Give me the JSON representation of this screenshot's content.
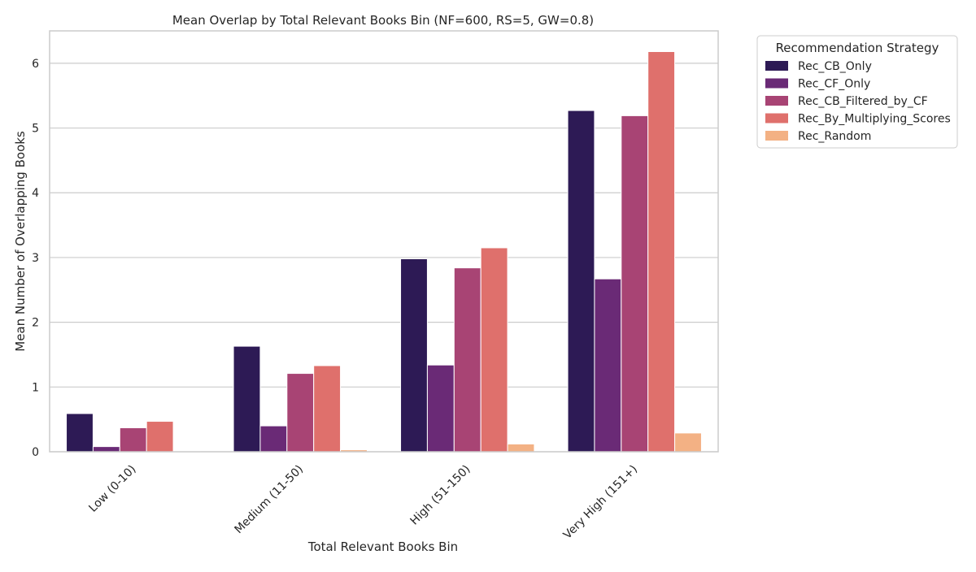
{
  "chart_data": {
    "type": "bar",
    "title": "Mean Overlap by Total Relevant Books Bin (NF=600, RS=5, GW=0.8)",
    "xlabel": "Total Relevant Books Bin",
    "ylabel": "Mean Number of Overlapping Books",
    "categories": [
      "Low (0-10)",
      "Medium (11-50)",
      "High (51-150)",
      "Very High (151+)"
    ],
    "ylim": [
      0,
      6.5
    ],
    "yticks": [
      "0",
      "1",
      "2",
      "3",
      "4",
      "5",
      "6"
    ],
    "grid": "horizontal",
    "legend": {
      "title": "Recommendation Strategy",
      "placement": "outside-top-right"
    },
    "series": [
      {
        "name": "Rec_CB_Only",
        "color": "#2d1a55",
        "values": [
          0.59,
          1.63,
          2.98,
          5.27
        ]
      },
      {
        "name": "Rec_CF_Only",
        "color": "#6a2a76",
        "values": [
          0.08,
          0.4,
          1.34,
          2.67
        ]
      },
      {
        "name": "Rec_CB_Filtered_by_CF",
        "color": "#a84474",
        "values": [
          0.37,
          1.21,
          2.84,
          5.19
        ]
      },
      {
        "name": "Rec_By_Multiplying_Scores",
        "color": "#df706c",
        "values": [
          0.47,
          1.33,
          3.15,
          6.18
        ]
      },
      {
        "name": "Rec_Random",
        "color": "#f3b184",
        "values": [
          0.005,
          0.03,
          0.12,
          0.29
        ]
      }
    ]
  }
}
